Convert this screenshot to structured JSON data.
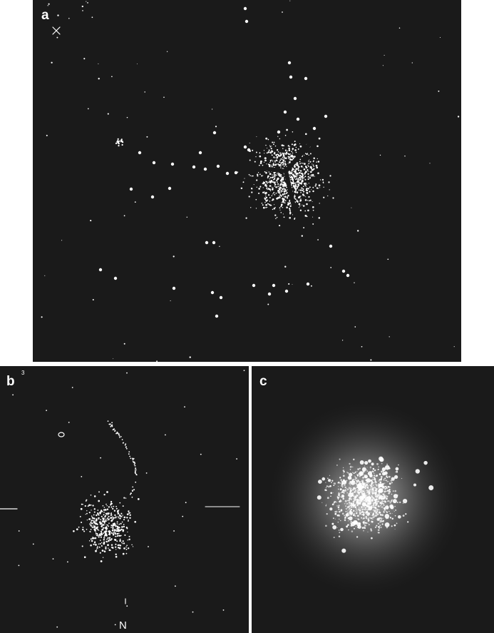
{
  "figure": {
    "panels": [
      {
        "label": "a"
      },
      {
        "label": "b",
        "superscript": "3",
        "direction": "N"
      },
      {
        "label": "c"
      }
    ],
    "colors": {
      "sky": "#1a1a1a",
      "stars": "#ffffff",
      "separator": "#ffffff"
    }
  }
}
